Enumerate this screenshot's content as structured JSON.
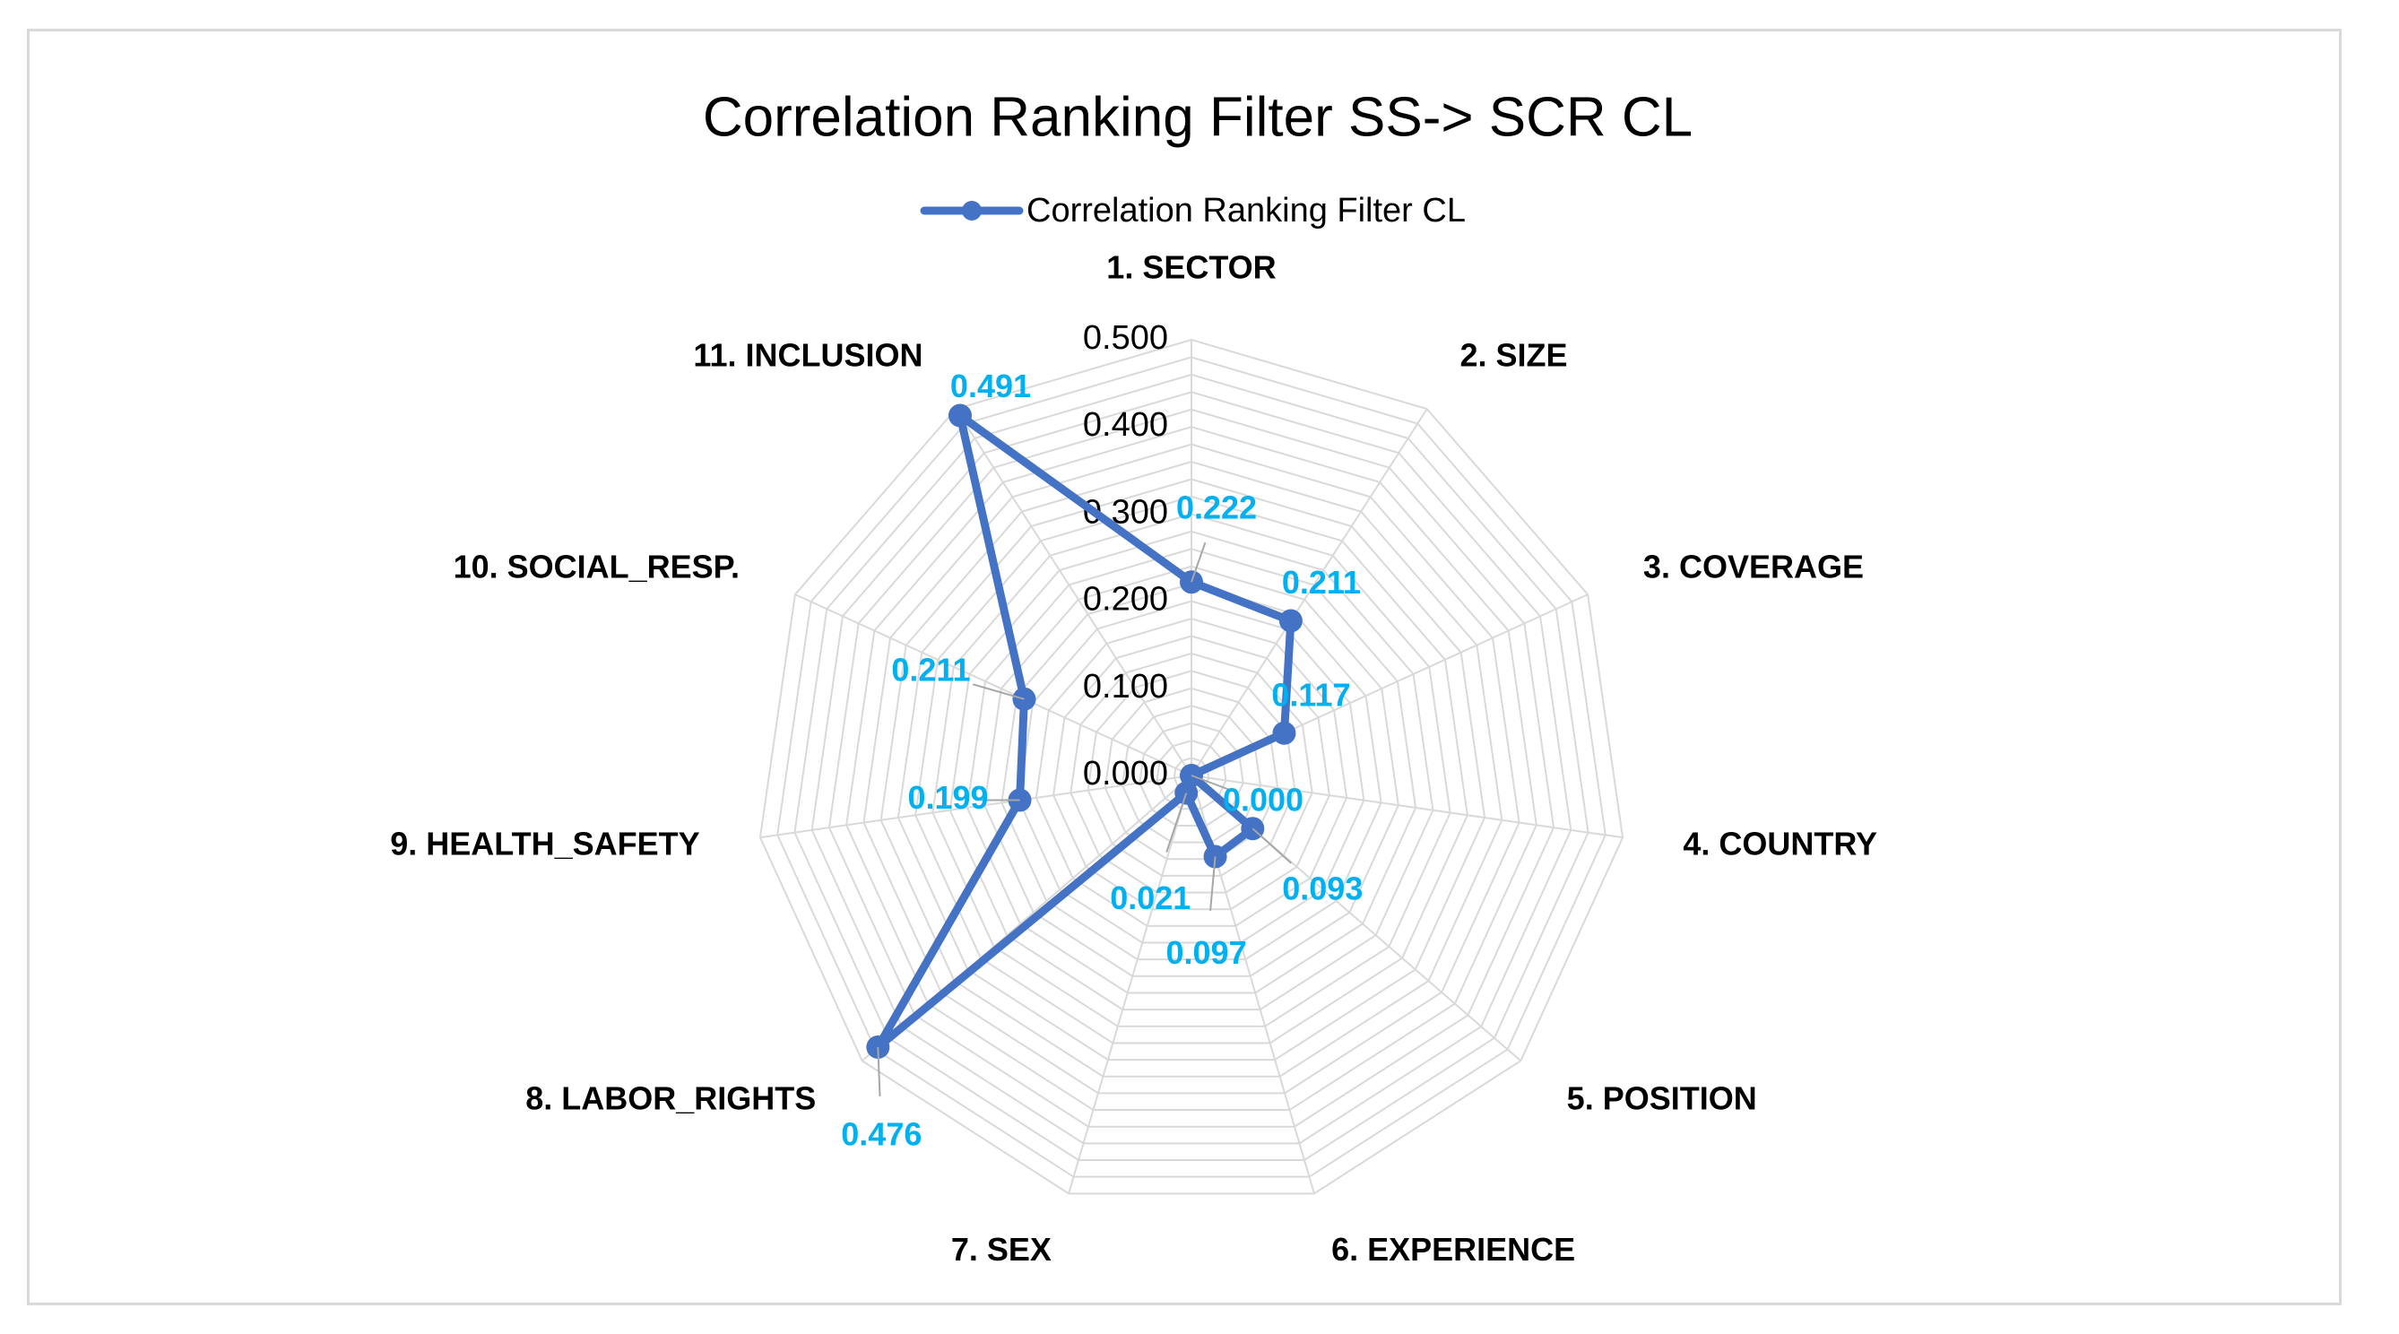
{
  "chart_data": {
    "type": "radar",
    "title": "Correlation Ranking Filter SS-> SCR CL",
    "categories": [
      "1. SECTOR",
      "2. SIZE",
      "3. COVERAGE",
      "4. COUNTRY",
      "5. POSITION",
      "6. EXPERIENCE",
      "7. SEX",
      "8. LABOR_RIGHTS",
      "9. HEALTH_SAFETY",
      "10. SOCIAL_RESP.",
      "11.  INCLUSION"
    ],
    "series": [
      {
        "name": "Correlation Ranking Filter CL",
        "values": [
          0.222,
          0.211,
          0.117,
          0.0,
          0.093,
          0.097,
          0.021,
          0.476,
          0.199,
          0.211,
          0.491
        ],
        "labels": [
          "0.222",
          "0.211",
          "0.117",
          "0.000",
          "0.093",
          "0.097",
          "0.021",
          "0.476",
          "0.199",
          "0.211",
          "0.491"
        ]
      }
    ],
    "rlim": [
      0,
      0.5
    ],
    "ticks": [
      "0.000",
      "0.100",
      "0.200",
      "0.300",
      "0.400",
      "0.500"
    ],
    "tick_values": [
      0,
      0.1,
      0.2,
      0.3,
      0.4,
      0.5
    ],
    "minor_rings": 25,
    "legend_position": "top",
    "colors": {
      "series": "#4472c4",
      "data_label": "#00b0f0",
      "grid": "#d9d9d9",
      "leader": "#a6a6a6"
    }
  }
}
